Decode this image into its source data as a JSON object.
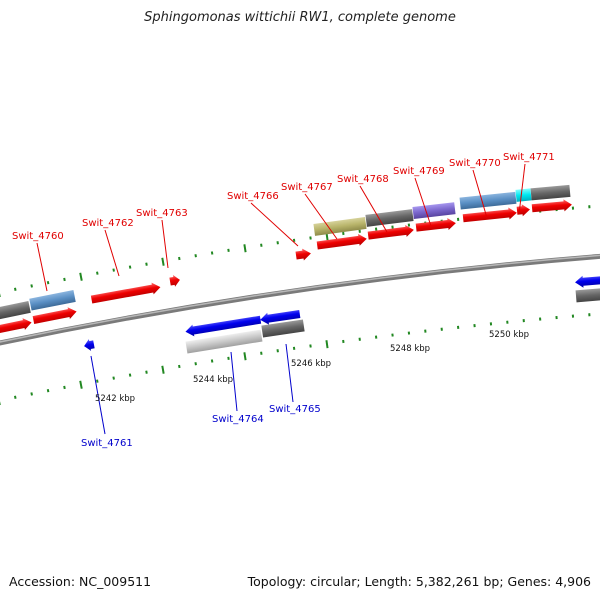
{
  "title": "Sphingomonas wittichii RW1, complete genome",
  "footer": {
    "accession": "Accession: NC_009511",
    "summary": "Topology: circular; Length: 5,382,261 bp; Genes: 4,906"
  },
  "scale_labels": [
    "5242 kbp",
    "5244 kbp",
    "5246 kbp",
    "5248 kbp",
    "5250 kbp"
  ],
  "genes_forward": [
    "Swit_4760",
    "Swit_4762",
    "Swit_4763",
    "Swit_4766",
    "Swit_4767",
    "Swit_4768",
    "Swit_4769",
    "Swit_4770",
    "Swit_4771"
  ],
  "genes_reverse": [
    "Swit_4761",
    "Swit_4764",
    "Swit_4765"
  ],
  "colors": {
    "forward_gene": "#ee0000",
    "reverse_gene": "#0000ee",
    "backbone": "#888888",
    "tick": "#228822",
    "cog_grey": "#666666",
    "cog_steelblue": "#5a8fc4",
    "cog_olive": "#b8b46a",
    "cog_purple": "#7a66cc",
    "cog_cyan": "#00e8f0",
    "cog_lightgrey": "#c8c8c8"
  }
}
